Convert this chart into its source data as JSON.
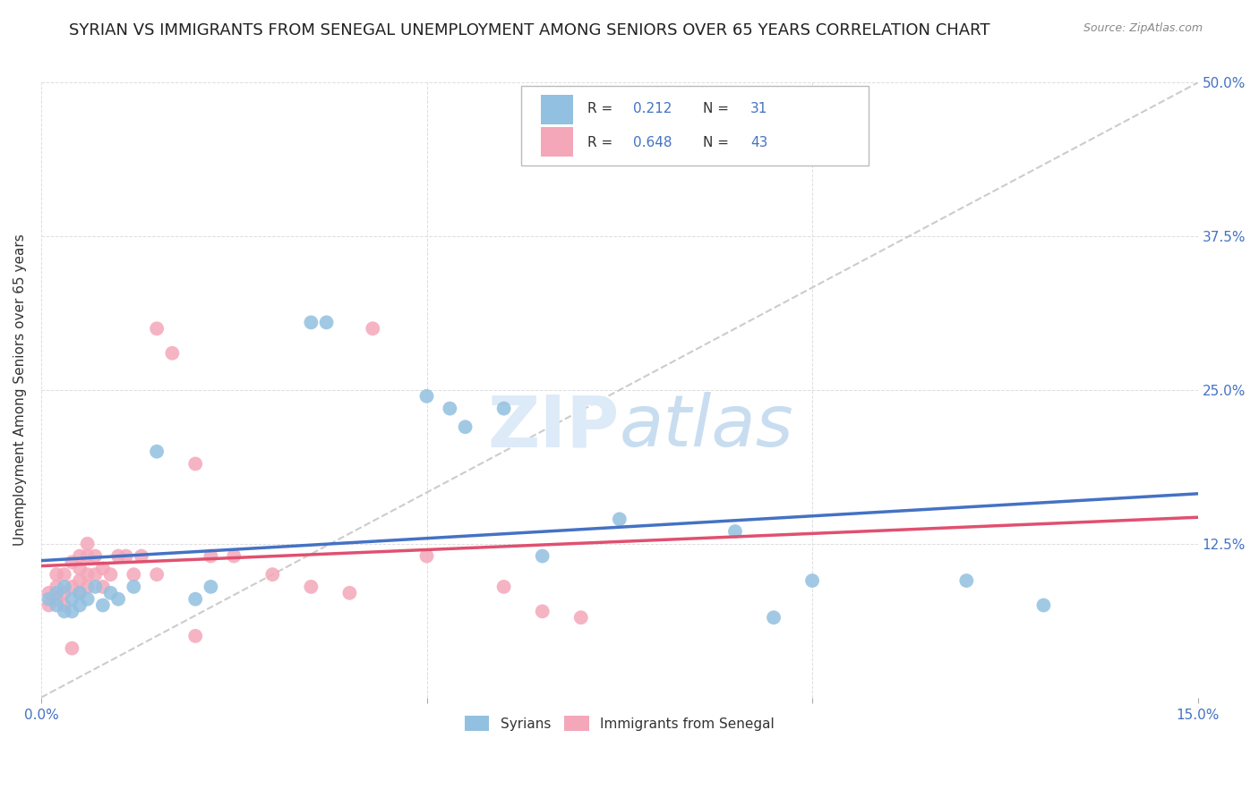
{
  "title": "SYRIAN VS IMMIGRANTS FROM SENEGAL UNEMPLOYMENT AMONG SENIORS OVER 65 YEARS CORRELATION CHART",
  "source": "Source: ZipAtlas.com",
  "ylabel": "Unemployment Among Seniors over 65 years",
  "xlim": [
    0.0,
    0.15
  ],
  "ylim": [
    0.0,
    0.5
  ],
  "syrian_color": "#92c0e0",
  "senegal_color": "#f4a7b9",
  "blue_color": "#4472C4",
  "pink_color": "#E05070",
  "diag_color": "#cccccc",
  "grid_color": "#dddddd",
  "title_fontsize": 13,
  "axis_label_fontsize": 11,
  "tick_fontsize": 11,
  "syrians_x": [
    0.001,
    0.002,
    0.002,
    0.003,
    0.003,
    0.004,
    0.004,
    0.005,
    0.005,
    0.006,
    0.007,
    0.008,
    0.009,
    0.01,
    0.012,
    0.015,
    0.02,
    0.022,
    0.035,
    0.037,
    0.05,
    0.053,
    0.055,
    0.06,
    0.065,
    0.075,
    0.09,
    0.095,
    0.1,
    0.12,
    0.13
  ],
  "syrians_y": [
    0.08,
    0.075,
    0.085,
    0.07,
    0.09,
    0.08,
    0.07,
    0.085,
    0.075,
    0.08,
    0.09,
    0.075,
    0.085,
    0.08,
    0.09,
    0.2,
    0.08,
    0.09,
    0.305,
    0.305,
    0.245,
    0.235,
    0.22,
    0.235,
    0.115,
    0.145,
    0.135,
    0.065,
    0.095,
    0.095,
    0.075
  ],
  "senegal_x": [
    0.001,
    0.001,
    0.002,
    0.002,
    0.002,
    0.003,
    0.003,
    0.003,
    0.004,
    0.004,
    0.005,
    0.005,
    0.005,
    0.006,
    0.006,
    0.006,
    0.007,
    0.007,
    0.008,
    0.008,
    0.009,
    0.01,
    0.011,
    0.012,
    0.013,
    0.015,
    0.017,
    0.02,
    0.022,
    0.025,
    0.03,
    0.035,
    0.04,
    0.043,
    0.05,
    0.06,
    0.065,
    0.07,
    0.015,
    0.02,
    0.005,
    0.006,
    0.004
  ],
  "senegal_y": [
    0.075,
    0.085,
    0.08,
    0.09,
    0.1,
    0.075,
    0.085,
    0.1,
    0.09,
    0.11,
    0.085,
    0.095,
    0.105,
    0.09,
    0.1,
    0.115,
    0.1,
    0.115,
    0.09,
    0.105,
    0.1,
    0.115,
    0.115,
    0.1,
    0.115,
    0.3,
    0.28,
    0.19,
    0.115,
    0.115,
    0.1,
    0.09,
    0.085,
    0.3,
    0.115,
    0.09,
    0.07,
    0.065,
    0.1,
    0.05,
    0.115,
    0.125,
    0.04
  ],
  "legend_R1": "0.212",
  "legend_N1": "31",
  "legend_R2": "0.648",
  "legend_N2": "43"
}
